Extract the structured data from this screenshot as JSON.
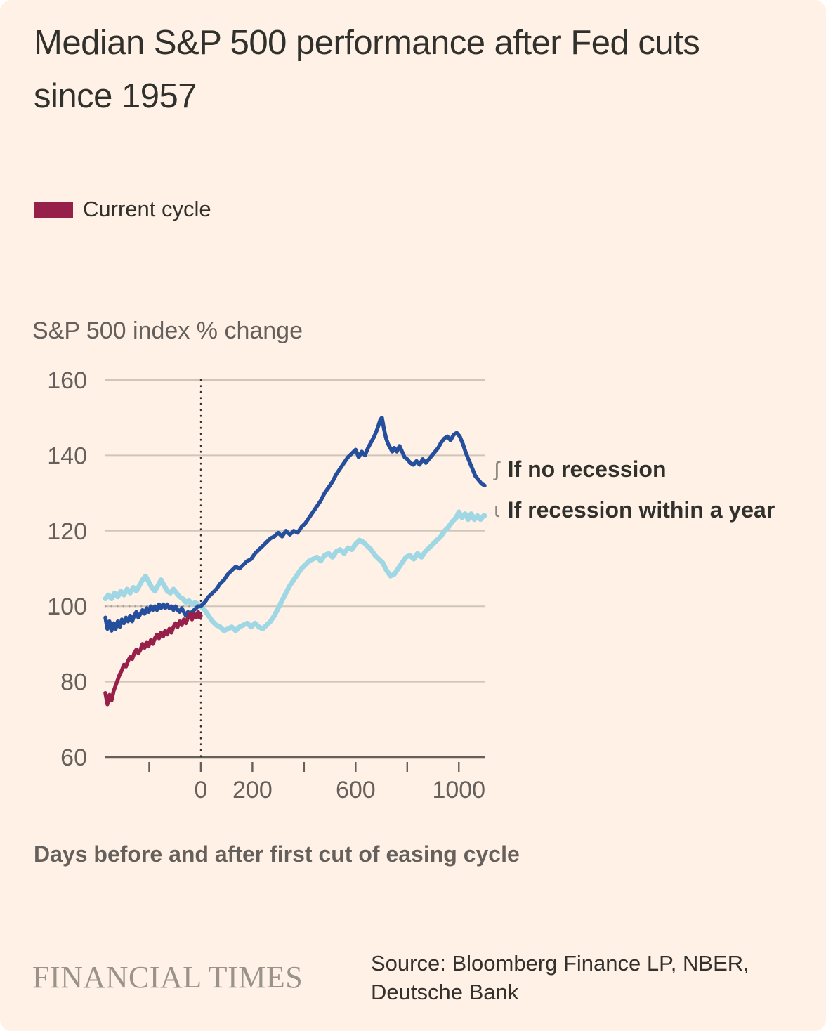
{
  "header": {
    "title": "Median S&P 500 performance after Fed cuts since 1957"
  },
  "legend": {
    "label": "Current cycle",
    "color": "#97204B"
  },
  "footer": {
    "brand": "FINANCIAL TIMES",
    "source": "Source: Bloomberg Finance LP, NBER, Deutsche Bank"
  },
  "chart_data": {
    "type": "line",
    "title": "Median S&P 500 performance after Fed cuts since 1957",
    "ylabel": "S&P 500 index % change",
    "xlabel": "Days before and after first cut of easing cycle",
    "x_domain": [
      -370,
      1100
    ],
    "y_domain": [
      60,
      160
    ],
    "y_ticks": [
      60,
      80,
      100,
      120,
      140,
      160
    ],
    "x_ticks": [
      -200,
      0,
      200,
      400,
      600,
      800,
      1000
    ],
    "x_tick_labels": {
      "0": "0",
      "200": "200",
      "600": "600",
      "1000": "1000"
    },
    "grid": true,
    "legend_position": "right-annotations",
    "reference_lines": {
      "vertical_x": 0,
      "horizontal_y": 100
    },
    "colors": {
      "grid": "#CFC5B9",
      "axis": "#66605C",
      "tick_text": "#66605C",
      "reference_vertical": "#30302C",
      "reference_horizontal": "#A59C92"
    },
    "annotations": [
      {
        "glyph": "ʃ",
        "label": "If no recession"
      },
      {
        "glyph": "ɩ",
        "label": "If recession within a year"
      }
    ],
    "series": [
      {
        "name": "If recession within a year",
        "color": "#9FD7E5",
        "width": 7,
        "points": [
          [
            -370,
            102
          ],
          [
            -358,
            103
          ],
          [
            -346,
            102
          ],
          [
            -334,
            103.5
          ],
          [
            -322,
            102.5
          ],
          [
            -310,
            104
          ],
          [
            -298,
            103
          ],
          [
            -286,
            104.5
          ],
          [
            -274,
            103.5
          ],
          [
            -262,
            105
          ],
          [
            -250,
            104
          ],
          [
            -238,
            105.5
          ],
          [
            -226,
            107
          ],
          [
            -214,
            108
          ],
          [
            -202,
            106.5
          ],
          [
            -190,
            105
          ],
          [
            -178,
            104
          ],
          [
            -166,
            105.5
          ],
          [
            -154,
            107
          ],
          [
            -142,
            105.5
          ],
          [
            -130,
            104
          ],
          [
            -118,
            103.5
          ],
          [
            -106,
            104.5
          ],
          [
            -94,
            103.5
          ],
          [
            -82,
            102.5
          ],
          [
            -70,
            102
          ],
          [
            -58,
            101
          ],
          [
            -46,
            101.5
          ],
          [
            -34,
            100.5
          ],
          [
            -22,
            101
          ],
          [
            -10,
            100.5
          ],
          [
            0,
            100
          ],
          [
            15,
            99
          ],
          [
            30,
            97.5
          ],
          [
            45,
            96
          ],
          [
            60,
            95
          ],
          [
            75,
            94.5
          ],
          [
            90,
            93.5
          ],
          [
            105,
            94
          ],
          [
            120,
            94.5
          ],
          [
            135,
            93.5
          ],
          [
            150,
            94.5
          ],
          [
            165,
            95
          ],
          [
            180,
            95.5
          ],
          [
            195,
            94.5
          ],
          [
            210,
            95.5
          ],
          [
            225,
            94.5
          ],
          [
            240,
            94
          ],
          [
            255,
            95
          ],
          [
            270,
            96
          ],
          [
            285,
            97.5
          ],
          [
            300,
            99.5
          ],
          [
            315,
            101.5
          ],
          [
            330,
            103.5
          ],
          [
            345,
            105.5
          ],
          [
            360,
            107
          ],
          [
            375,
            108.5
          ],
          [
            390,
            110
          ],
          [
            405,
            111
          ],
          [
            420,
            112
          ],
          [
            435,
            112.5
          ],
          [
            450,
            113
          ],
          [
            465,
            112
          ],
          [
            480,
            113.5
          ],
          [
            495,
            114
          ],
          [
            510,
            113
          ],
          [
            525,
            114.5
          ],
          [
            540,
            115
          ],
          [
            555,
            114
          ],
          [
            570,
            115.5
          ],
          [
            585,
            115
          ],
          [
            600,
            116.5
          ],
          [
            615,
            117.5
          ],
          [
            630,
            117
          ],
          [
            645,
            116
          ],
          [
            660,
            115
          ],
          [
            675,
            113.5
          ],
          [
            690,
            112.5
          ],
          [
            705,
            111.5
          ],
          [
            720,
            109.5
          ],
          [
            735,
            108
          ],
          [
            750,
            108.5
          ],
          [
            765,
            110
          ],
          [
            780,
            111.5
          ],
          [
            795,
            113
          ],
          [
            810,
            113.5
          ],
          [
            825,
            112.5
          ],
          [
            840,
            114
          ],
          [
            855,
            113
          ],
          [
            870,
            114.5
          ],
          [
            885,
            115.5
          ],
          [
            900,
            116.5
          ],
          [
            915,
            117.5
          ],
          [
            930,
            118.5
          ],
          [
            945,
            120
          ],
          [
            960,
            121
          ],
          [
            975,
            122.5
          ],
          [
            990,
            123.5
          ],
          [
            1000,
            125
          ],
          [
            1012,
            123.5
          ],
          [
            1024,
            124.5
          ],
          [
            1036,
            123
          ],
          [
            1048,
            124.5
          ],
          [
            1060,
            123
          ],
          [
            1072,
            124
          ],
          [
            1084,
            123
          ],
          [
            1096,
            124
          ],
          [
            1100,
            124
          ]
        ]
      },
      {
        "name": "If no recession",
        "color": "#254E9C",
        "width": 5.5,
        "points": [
          [
            -370,
            97
          ],
          [
            -362,
            94
          ],
          [
            -354,
            96
          ],
          [
            -346,
            93.5
          ],
          [
            -338,
            95.5
          ],
          [
            -330,
            94
          ],
          [
            -322,
            96
          ],
          [
            -314,
            94.5
          ],
          [
            -306,
            96.5
          ],
          [
            -298,
            95.5
          ],
          [
            -290,
            97
          ],
          [
            -282,
            96
          ],
          [
            -274,
            97.5
          ],
          [
            -266,
            96
          ],
          [
            -258,
            97.5
          ],
          [
            -250,
            98.5
          ],
          [
            -242,
            97
          ],
          [
            -234,
            98
          ],
          [
            -226,
            99
          ],
          [
            -218,
            98
          ],
          [
            -210,
            99.5
          ],
          [
            -202,
            98.5
          ],
          [
            -194,
            100
          ],
          [
            -186,
            99
          ],
          [
            -178,
            100
          ],
          [
            -170,
            99
          ],
          [
            -162,
            100.5
          ],
          [
            -154,
            99.5
          ],
          [
            -146,
            100.5
          ],
          [
            -138,
            99.5
          ],
          [
            -130,
            100.5
          ],
          [
            -122,
            99.5
          ],
          [
            -114,
            100
          ],
          [
            -106,
            99
          ],
          [
            -98,
            100
          ],
          [
            -90,
            99
          ],
          [
            -82,
            98.5
          ],
          [
            -74,
            99.5
          ],
          [
            -66,
            98.5
          ],
          [
            -58,
            97.5
          ],
          [
            -50,
            98.5
          ],
          [
            -42,
            97.5
          ],
          [
            -34,
            98.5
          ],
          [
            -26,
            99
          ],
          [
            -18,
            99.5
          ],
          [
            -10,
            100
          ],
          [
            0,
            100
          ],
          [
            15,
            101
          ],
          [
            30,
            102.5
          ],
          [
            45,
            103.5
          ],
          [
            60,
            104.5
          ],
          [
            75,
            106
          ],
          [
            90,
            107
          ],
          [
            105,
            108.5
          ],
          [
            120,
            109.5
          ],
          [
            135,
            110.5
          ],
          [
            150,
            110
          ],
          [
            165,
            111
          ],
          [
            180,
            112
          ],
          [
            195,
            112.5
          ],
          [
            210,
            114
          ],
          [
            225,
            115
          ],
          [
            240,
            116
          ],
          [
            255,
            117
          ],
          [
            270,
            118
          ],
          [
            285,
            118.5
          ],
          [
            300,
            119.5
          ],
          [
            315,
            118.5
          ],
          [
            330,
            120
          ],
          [
            345,
            119
          ],
          [
            360,
            120
          ],
          [
            375,
            119.5
          ],
          [
            390,
            121
          ],
          [
            405,
            122
          ],
          [
            420,
            123.5
          ],
          [
            435,
            125
          ],
          [
            450,
            126.5
          ],
          [
            465,
            128
          ],
          [
            480,
            130
          ],
          [
            495,
            131.5
          ],
          [
            510,
            133
          ],
          [
            525,
            135
          ],
          [
            540,
            136.5
          ],
          [
            555,
            138
          ],
          [
            570,
            139.5
          ],
          [
            585,
            140.5
          ],
          [
            600,
            141.5
          ],
          [
            612,
            139.5
          ],
          [
            624,
            141
          ],
          [
            636,
            140
          ],
          [
            648,
            142
          ],
          [
            660,
            143.5
          ],
          [
            672,
            145
          ],
          [
            684,
            147
          ],
          [
            696,
            149.5
          ],
          [
            702,
            150
          ],
          [
            710,
            147
          ],
          [
            718,
            144.5
          ],
          [
            726,
            143
          ],
          [
            734,
            142
          ],
          [
            742,
            141
          ],
          [
            750,
            142
          ],
          [
            760,
            141
          ],
          [
            770,
            142.5
          ],
          [
            780,
            141
          ],
          [
            790,
            139.5
          ],
          [
            800,
            139
          ],
          [
            812,
            138
          ],
          [
            824,
            137.5
          ],
          [
            836,
            138.5
          ],
          [
            848,
            137.5
          ],
          [
            860,
            139
          ],
          [
            872,
            138
          ],
          [
            884,
            139
          ],
          [
            896,
            140
          ],
          [
            908,
            141
          ],
          [
            920,
            142
          ],
          [
            932,
            143.5
          ],
          [
            944,
            144.5
          ],
          [
            956,
            145
          ],
          [
            968,
            144
          ],
          [
            980,
            145.5
          ],
          [
            992,
            146
          ],
          [
            1004,
            145
          ],
          [
            1016,
            143
          ],
          [
            1028,
            140.5
          ],
          [
            1040,
            138.5
          ],
          [
            1052,
            136.5
          ],
          [
            1064,
            134.5
          ],
          [
            1076,
            133.5
          ],
          [
            1088,
            132.5
          ],
          [
            1100,
            132
          ]
        ]
      },
      {
        "name": "Current cycle",
        "color": "#97204B",
        "width": 5.5,
        "points": [
          [
            -370,
            77
          ],
          [
            -362,
            74
          ],
          [
            -354,
            76.5
          ],
          [
            -346,
            75
          ],
          [
            -338,
            77.5
          ],
          [
            -330,
            79
          ],
          [
            -322,
            80.5
          ],
          [
            -314,
            82
          ],
          [
            -306,
            83
          ],
          [
            -298,
            84.5
          ],
          [
            -290,
            84
          ],
          [
            -282,
            85.5
          ],
          [
            -274,
            86.5
          ],
          [
            -266,
            86
          ],
          [
            -258,
            87.5
          ],
          [
            -250,
            88.5
          ],
          [
            -242,
            87.5
          ],
          [
            -234,
            88.5
          ],
          [
            -226,
            90
          ],
          [
            -218,
            89
          ],
          [
            -210,
            90.5
          ],
          [
            -202,
            89.5
          ],
          [
            -194,
            91
          ],
          [
            -186,
            90
          ],
          [
            -178,
            91.5
          ],
          [
            -170,
            92.5
          ],
          [
            -162,
            91.5
          ],
          [
            -154,
            93
          ],
          [
            -146,
            92
          ],
          [
            -138,
            93.5
          ],
          [
            -130,
            92.5
          ],
          [
            -122,
            94
          ],
          [
            -114,
            93
          ],
          [
            -106,
            94.5
          ],
          [
            -98,
            95.5
          ],
          [
            -90,
            94.5
          ],
          [
            -82,
            96
          ],
          [
            -74,
            95
          ],
          [
            -66,
            96.5
          ],
          [
            -58,
            95.5
          ],
          [
            -50,
            97
          ],
          [
            -42,
            98
          ],
          [
            -34,
            96.5
          ],
          [
            -26,
            98
          ],
          [
            -18,
            97
          ],
          [
            -10,
            98.5
          ],
          [
            -4,
            97
          ],
          [
            0,
            97.5
          ]
        ]
      }
    ]
  }
}
